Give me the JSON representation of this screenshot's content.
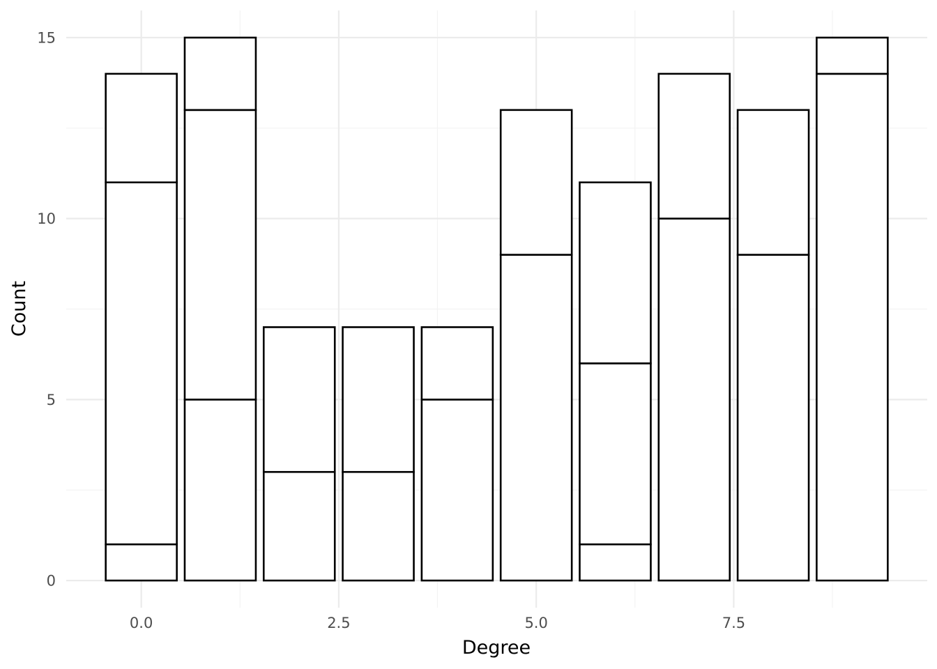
{
  "chart_data": {
    "type": "bar",
    "stacked": true,
    "title": "",
    "xlabel": "Degree",
    "ylabel": "Count",
    "x": [
      0,
      1,
      2,
      3,
      4,
      5,
      6,
      7,
      8,
      9
    ],
    "stacks": [
      [
        1,
        10,
        3
      ],
      [
        5,
        8,
        2
      ],
      [
        3,
        4
      ],
      [
        3,
        4
      ],
      [
        5,
        2
      ],
      [
        9,
        4
      ],
      [
        1,
        5,
        5
      ],
      [
        10,
        4
      ],
      [
        9,
        4
      ],
      [
        14,
        1
      ]
    ],
    "totals": [
      14,
      15,
      7,
      7,
      7,
      13,
      11,
      14,
      13,
      15
    ],
    "xlim": [
      -0.95,
      9.95
    ],
    "ylim": [
      -0.75,
      15.75
    ],
    "x_ticks": [
      0.0,
      2.5,
      5.0,
      7.5
    ],
    "x_tick_labels": [
      "0.0",
      "2.5",
      "5.0",
      "7.5"
    ],
    "y_ticks": [
      0,
      5,
      10,
      15
    ],
    "y_tick_labels": [
      "0",
      "5",
      "10",
      "15"
    ],
    "grid": true,
    "legend": "none",
    "colors": {
      "bar_fill": "#ffffff",
      "bar_stroke": "#000000",
      "grid": "#ebebeb"
    }
  }
}
